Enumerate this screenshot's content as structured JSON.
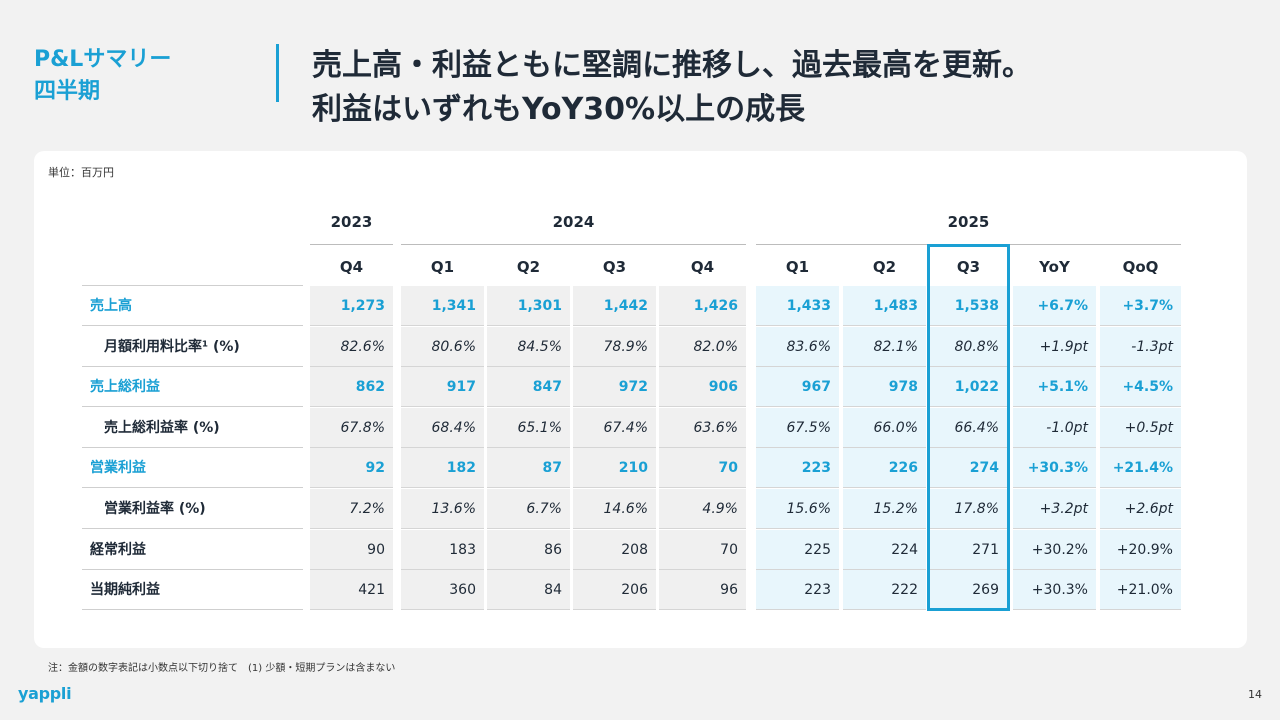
{
  "section": {
    "line1": "P&Lサマリー",
    "line2": "四半期"
  },
  "headline": {
    "line1": "売上高・利益ともに堅調に推移し、過去最高を更新。",
    "line2": "利益はいずれもYoY30%以上の成長"
  },
  "unit": "単位：百万円",
  "years": [
    "2023",
    "2024",
    "2025"
  ],
  "quarters": [
    "Q4",
    "Q1",
    "Q2",
    "Q3",
    "Q4",
    "Q1",
    "Q2",
    "Q3",
    "YoY",
    "QoQ"
  ],
  "rows": [
    {
      "label": "売上高",
      "style": "blue",
      "values": [
        "1,273",
        "1,341",
        "1,301",
        "1,442",
        "1,426",
        "1,433",
        "1,483",
        "1,538",
        "+6.7%",
        "+3.7%"
      ]
    },
    {
      "label": "月額利用料比率¹ (%)",
      "style": "sub",
      "values": [
        "82.6%",
        "80.6%",
        "84.5%",
        "78.9%",
        "82.0%",
        "83.6%",
        "82.1%",
        "80.8%",
        "+1.9pt",
        "-1.3pt"
      ]
    },
    {
      "label": "売上総利益",
      "style": "blue",
      "values": [
        "862",
        "917",
        "847",
        "972",
        "906",
        "967",
        "978",
        "1,022",
        "+5.1%",
        "+4.5%"
      ]
    },
    {
      "label": "売上総利益率 (%)",
      "style": "sub",
      "values": [
        "67.8%",
        "68.4%",
        "65.1%",
        "67.4%",
        "63.6%",
        "67.5%",
        "66.0%",
        "66.4%",
        "-1.0pt",
        "+0.5pt"
      ]
    },
    {
      "label": "営業利益",
      "style": "blue",
      "values": [
        "92",
        "182",
        "87",
        "210",
        "70",
        "223",
        "226",
        "274",
        "+30.3%",
        "+21.4%"
      ]
    },
    {
      "label": "営業利益率 (%)",
      "style": "sub",
      "values": [
        "7.2%",
        "13.6%",
        "6.7%",
        "14.6%",
        "4.9%",
        "15.6%",
        "15.2%",
        "17.8%",
        "+3.2pt",
        "+2.6pt"
      ]
    },
    {
      "label": "経常利益",
      "style": "plain",
      "values": [
        "90",
        "183",
        "86",
        "208",
        "70",
        "225",
        "224",
        "271",
        "+30.2%",
        "+20.9%"
      ]
    },
    {
      "label": "当期純利益",
      "style": "plain",
      "values": [
        "421",
        "360",
        "84",
        "206",
        "96",
        "223",
        "222",
        "269",
        "+30.3%",
        "+21.0%"
      ]
    }
  ],
  "footnote": "注：金額の数字表記は小数点以下切り捨て　(1) 少額・短期プランは含まない",
  "logo": "yappli",
  "page_number": "14",
  "colors": {
    "accent": "#1aa0d4",
    "highlight_bg": "#e8f6fc",
    "grey_bg": "#f0f0f0"
  }
}
